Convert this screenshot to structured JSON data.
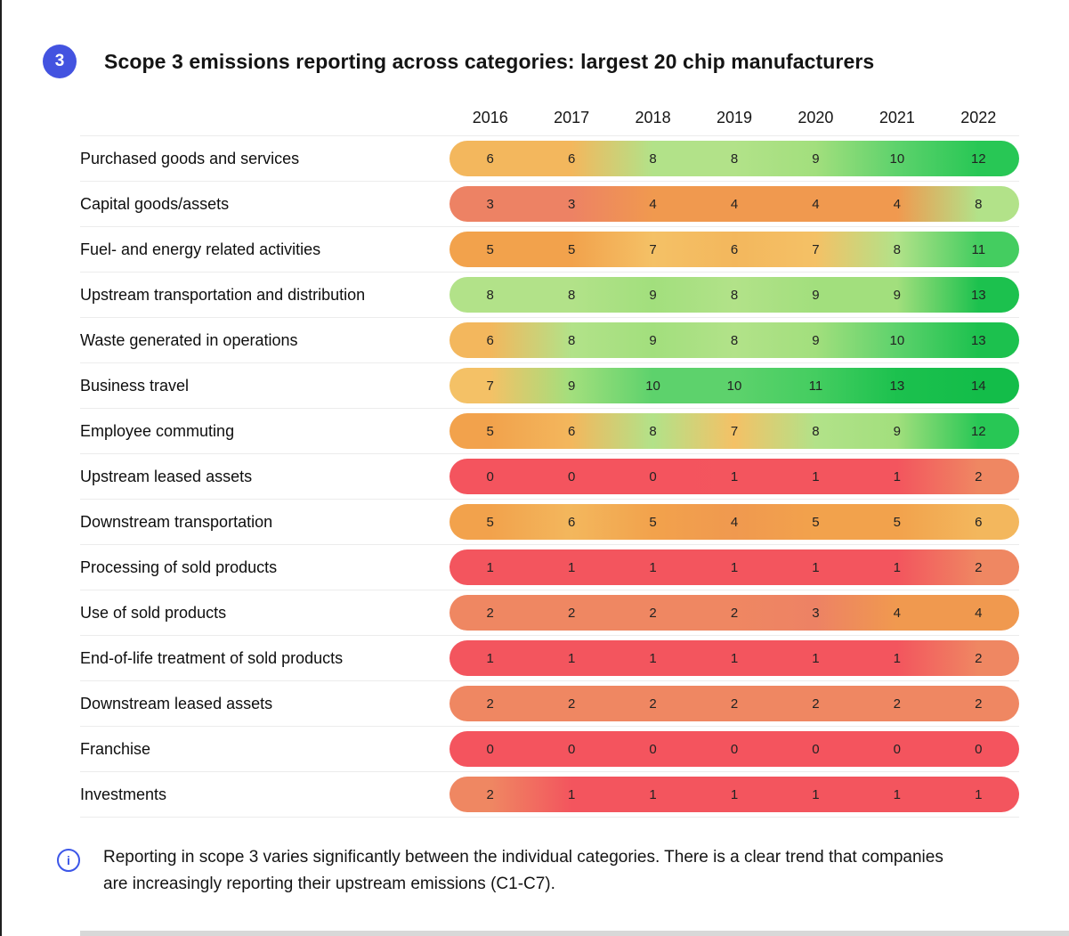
{
  "figure": {
    "badge": "3",
    "title": "Scope 3 emissions reporting across categories: largest 20 chip manufacturers"
  },
  "chart_data": {
    "type": "heatmap",
    "title": "Scope 3 emissions reporting across categories: largest 20 chip manufacturers",
    "columns": [
      "2016",
      "2017",
      "2018",
      "2019",
      "2020",
      "2021",
      "2022"
    ],
    "rows": [
      {
        "label": "Purchased goods and services",
        "values": [
          6,
          6,
          8,
          8,
          9,
          10,
          12
        ]
      },
      {
        "label": "Capital goods/assets",
        "values": [
          3,
          3,
          4,
          4,
          4,
          4,
          8
        ]
      },
      {
        "label": "Fuel- and energy related activities",
        "values": [
          5,
          5,
          7,
          6,
          7,
          8,
          11
        ]
      },
      {
        "label": "Upstream transportation and distribution",
        "values": [
          8,
          8,
          9,
          8,
          9,
          9,
          13
        ]
      },
      {
        "label": "Waste generated in operations",
        "values": [
          6,
          8,
          9,
          8,
          9,
          10,
          13
        ]
      },
      {
        "label": "Business travel",
        "values": [
          7,
          9,
          10,
          10,
          11,
          13,
          14
        ]
      },
      {
        "label": "Employee commuting",
        "values": [
          5,
          6,
          8,
          7,
          8,
          9,
          12
        ]
      },
      {
        "label": "Upstream leased assets",
        "values": [
          0,
          0,
          0,
          1,
          1,
          1,
          2
        ]
      },
      {
        "label": "Downstream transportation",
        "values": [
          5,
          6,
          5,
          4,
          5,
          5,
          6
        ]
      },
      {
        "label": "Processing of sold products",
        "values": [
          1,
          1,
          1,
          1,
          1,
          1,
          2
        ]
      },
      {
        "label": "Use of sold products",
        "values": [
          2,
          2,
          2,
          2,
          3,
          4,
          4
        ]
      },
      {
        "label": "End-of-life treatment of sold products",
        "values": [
          1,
          1,
          1,
          1,
          1,
          1,
          2
        ]
      },
      {
        "label": "Downstream leased assets",
        "values": [
          2,
          2,
          2,
          2,
          2,
          2,
          2
        ]
      },
      {
        "label": "Franchise",
        "values": [
          0,
          0,
          0,
          0,
          0,
          0,
          0
        ]
      },
      {
        "label": "Investments",
        "values": [
          2,
          1,
          1,
          1,
          1,
          1,
          1
        ]
      }
    ],
    "value_range": [
      0,
      14
    ],
    "color_scale": {
      "0": "#f4545e",
      "1": "#f3555e",
      "2": "#ef8762",
      "3": "#ed8264",
      "4": "#f0994f",
      "5": "#f2a24c",
      "6": "#f3b75d",
      "7": "#f4c166",
      "8": "#b2e289",
      "9": "#a2df7d",
      "10": "#5dd26c",
      "11": "#44cd60",
      "12": "#28c755",
      "13": "#1cc14e",
      "14": "#13bd49"
    },
    "legend": "none",
    "grid": "row-dividers"
  },
  "footnote": {
    "icon_glyph": "i",
    "text": "Reporting in scope 3 varies significantly between the individual categories. There is a clear trend that companies are increasingly reporting their upstream emissions (C1-C7)."
  },
  "colors": {
    "badge_bg": "#4353e0",
    "info_icon": "#3c56e8",
    "row_divider": "#ececec",
    "left_border": "#1f1f1f",
    "bottom_strip": "#d8d8d8",
    "cell_text": "#222222"
  }
}
